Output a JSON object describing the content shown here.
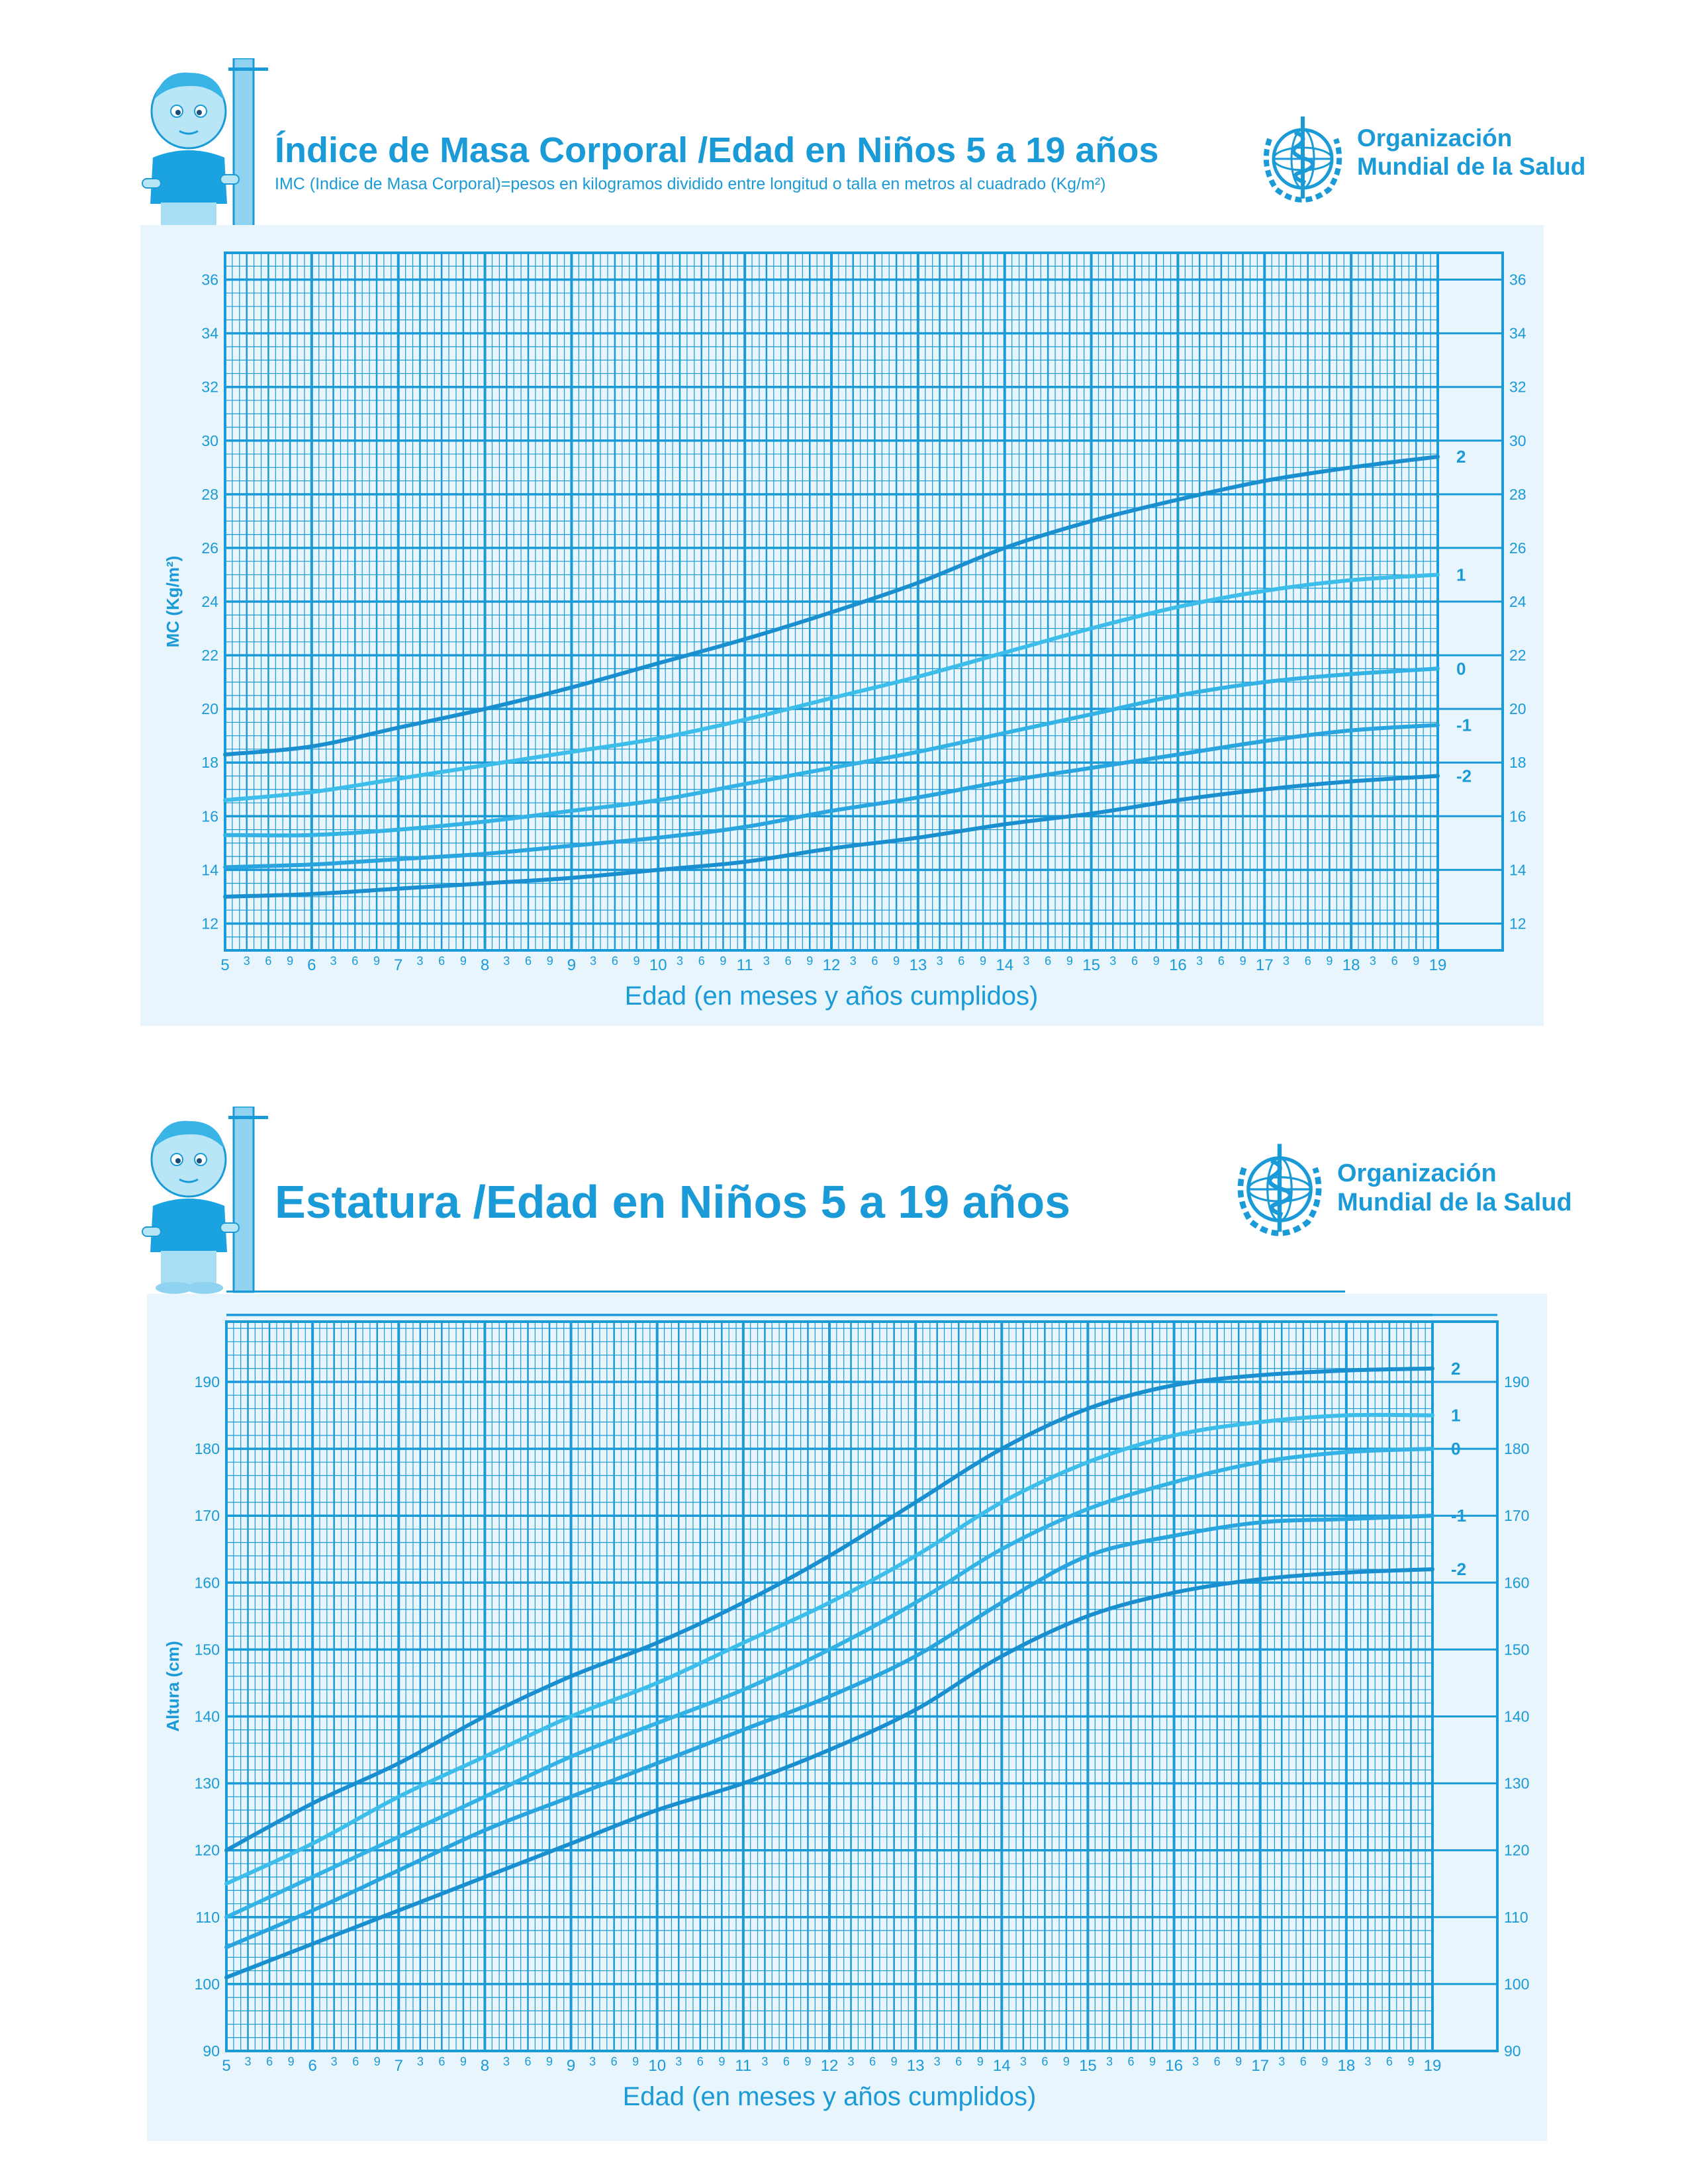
{
  "header_top": {
    "title": "Índice de Masa Corporal /Edad en Niños 5 a 19 años",
    "subtitle": "IMC (Indice de Masa Corporal)=pesos en kilogramos dividido entre longitud o talla en metros al cuadrado (Kg/m²)",
    "org_line1": "Organización",
    "org_line2": "Mundial de la Salud"
  },
  "header_bottom": {
    "title": "Estatura /Edad en Niños 5 a 19 años",
    "org_line1": "Organización",
    "org_line2": "Mundial de la Salud"
  },
  "colors": {
    "primary": "#1a9ad6",
    "light": "#3dbde9",
    "panel": "#e8f5fc",
    "grid": "#1a9ad6"
  },
  "chart_data": [
    {
      "type": "line",
      "xlabel": "Edad (en meses y años cumplidos)",
      "ylabel": "MC (Kg/m²)",
      "xlim": [
        5,
        19
      ],
      "ylim": [
        11,
        37
      ],
      "yticks": [
        12,
        14,
        16,
        18,
        20,
        22,
        24,
        26,
        28,
        30,
        32,
        34,
        36
      ],
      "x_major_labels": [
        "5",
        "6",
        "7",
        "8",
        "9",
        "10",
        "11",
        "12",
        "13",
        "14",
        "15",
        "16",
        "17",
        "18",
        "19"
      ],
      "x_minor_labels": [
        "3",
        "6",
        "9"
      ],
      "grid": true,
      "series": [
        {
          "name": "2",
          "x": [
            5,
            6,
            7,
            8,
            9,
            10,
            11,
            12,
            13,
            14,
            15,
            16,
            17,
            18,
            19
          ],
          "values": [
            18.3,
            18.6,
            19.3,
            20.0,
            20.8,
            21.7,
            22.6,
            23.6,
            24.7,
            26.0,
            27.0,
            27.8,
            28.5,
            29.0,
            29.4
          ]
        },
        {
          "name": "1",
          "x": [
            5,
            6,
            7,
            8,
            9,
            10,
            11,
            12,
            13,
            14,
            15,
            16,
            17,
            18,
            19
          ],
          "values": [
            16.6,
            16.9,
            17.4,
            17.9,
            18.4,
            18.9,
            19.6,
            20.4,
            21.2,
            22.1,
            23.0,
            23.8,
            24.4,
            24.8,
            25.0
          ]
        },
        {
          "name": "0",
          "x": [
            5,
            6,
            7,
            8,
            9,
            10,
            11,
            12,
            13,
            14,
            15,
            16,
            17,
            18,
            19
          ],
          "values": [
            15.3,
            15.3,
            15.5,
            15.8,
            16.2,
            16.6,
            17.2,
            17.8,
            18.4,
            19.1,
            19.8,
            20.5,
            21.0,
            21.3,
            21.5
          ]
        },
        {
          "name": "-1",
          "x": [
            5,
            6,
            7,
            8,
            9,
            10,
            11,
            12,
            13,
            14,
            15,
            16,
            17,
            18,
            19
          ],
          "values": [
            14.1,
            14.2,
            14.4,
            14.6,
            14.9,
            15.2,
            15.6,
            16.2,
            16.7,
            17.3,
            17.8,
            18.3,
            18.8,
            19.2,
            19.4
          ]
        },
        {
          "name": "-2",
          "x": [
            5,
            6,
            7,
            8,
            9,
            10,
            11,
            12,
            13,
            14,
            15,
            16,
            17,
            18,
            19
          ],
          "values": [
            13.0,
            13.1,
            13.3,
            13.5,
            13.7,
            14.0,
            14.3,
            14.8,
            15.2,
            15.7,
            16.1,
            16.6,
            17.0,
            17.3,
            17.5
          ]
        }
      ]
    },
    {
      "type": "line",
      "xlabel": "Edad (en meses y años cumplidos)",
      "ylabel": "Altura (cm)",
      "xlim": [
        5,
        19
      ],
      "ylim": [
        90,
        199
      ],
      "yticks": [
        90,
        100,
        110,
        120,
        130,
        140,
        150,
        160,
        170,
        180,
        190
      ],
      "x_major_labels": [
        "5",
        "6",
        "7",
        "8",
        "9",
        "10",
        "11",
        "12",
        "13",
        "14",
        "15",
        "16",
        "17",
        "18",
        "19"
      ],
      "x_minor_labels": [
        "3",
        "6",
        "9"
      ],
      "grid": true,
      "series": [
        {
          "name": "2",
          "x": [
            5,
            6,
            7,
            8,
            9,
            10,
            11,
            12,
            13,
            14,
            15,
            16,
            17,
            18,
            19
          ],
          "values": [
            120,
            127,
            133,
            140,
            146,
            151,
            157,
            164,
            172,
            180,
            186,
            189.5,
            191,
            191.7,
            192
          ]
        },
        {
          "name": "1",
          "x": [
            5,
            6,
            7,
            8,
            9,
            10,
            11,
            12,
            13,
            14,
            15,
            16,
            17,
            18,
            19
          ],
          "values": [
            115,
            121,
            128,
            134,
            140,
            145,
            151,
            157,
            164,
            172,
            178,
            182,
            184,
            185,
            185
          ]
        },
        {
          "name": "0",
          "x": [
            5,
            6,
            7,
            8,
            9,
            10,
            11,
            12,
            13,
            14,
            15,
            16,
            17,
            18,
            19
          ],
          "values": [
            110,
            116,
            122,
            128,
            134,
            139,
            144,
            150,
            157,
            165,
            171,
            175,
            178,
            179.5,
            180
          ]
        },
        {
          "name": "-1",
          "x": [
            5,
            6,
            7,
            8,
            9,
            10,
            11,
            12,
            13,
            14,
            15,
            16,
            17,
            18,
            19
          ],
          "values": [
            105.5,
            111,
            117,
            123,
            128,
            133,
            138,
            143,
            149,
            157,
            164,
            167,
            169,
            169.5,
            170
          ]
        },
        {
          "name": "-2",
          "x": [
            5,
            6,
            7,
            8,
            9,
            10,
            11,
            12,
            13,
            14,
            15,
            16,
            17,
            18,
            19
          ],
          "values": [
            101,
            106,
            111,
            116,
            121,
            126,
            130,
            135,
            141,
            149,
            155,
            158.5,
            160.5,
            161.5,
            162
          ]
        }
      ]
    }
  ]
}
